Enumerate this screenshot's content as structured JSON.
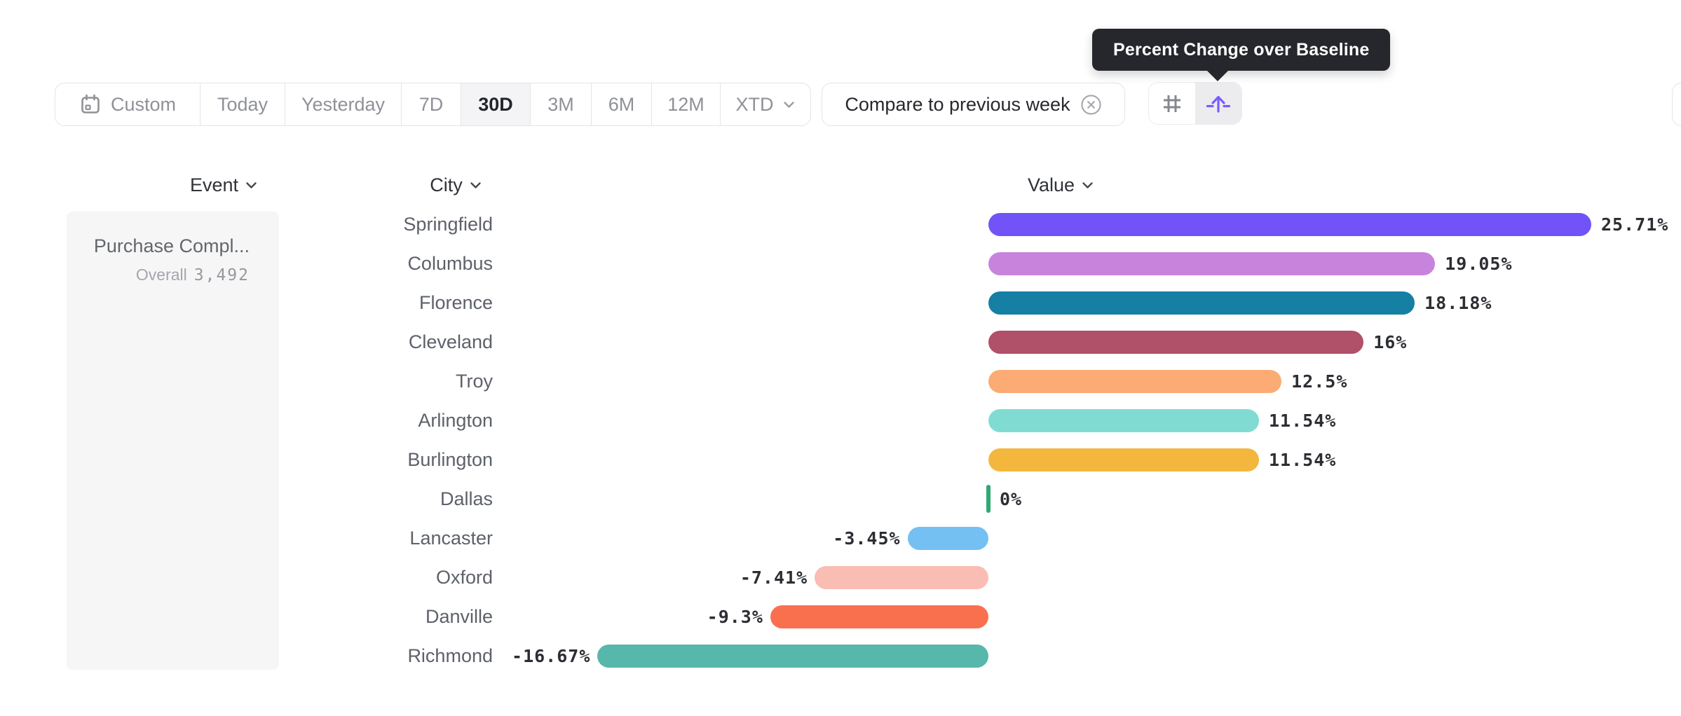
{
  "tooltip": {
    "text": "Percent Change over Baseline"
  },
  "toolbar": {
    "date_ranges": [
      {
        "label": "Custom",
        "icon": "calendar-icon",
        "selected": false
      },
      {
        "label": "Today",
        "selected": false
      },
      {
        "label": "Yesterday",
        "selected": false
      },
      {
        "label": "7D",
        "selected": false
      },
      {
        "label": "30D",
        "selected": true
      },
      {
        "label": "3M",
        "selected": false
      },
      {
        "label": "6M",
        "selected": false
      },
      {
        "label": "12M",
        "selected": false
      },
      {
        "label": "XTD",
        "chevron": true,
        "selected": false
      }
    ],
    "compare": {
      "label": "Compare to previous week",
      "icon": "circle-x-icon"
    },
    "view_toggle": [
      {
        "name": "grid-view",
        "icon": "hash-grid-icon",
        "active": false
      },
      {
        "name": "baseline-view",
        "icon": "arrow-up-baseline-icon",
        "active": true
      }
    ]
  },
  "columns": [
    {
      "label": "Event",
      "chevron": true
    },
    {
      "label": "City",
      "chevron": true
    },
    {
      "label": "Value",
      "chevron": true
    }
  ],
  "event_cell": {
    "name": "Purchase Compl...",
    "overall_label": "Overall",
    "overall_value": "3,492"
  },
  "chart_data": {
    "type": "bar",
    "orientation": "horizontal",
    "title": "Percent Change over Baseline",
    "categories": [
      "Springfield",
      "Columbus",
      "Florence",
      "Cleveland",
      "Troy",
      "Arlington",
      "Burlington",
      "Dallas",
      "Lancaster",
      "Oxford",
      "Danville",
      "Richmond"
    ],
    "values": [
      25.71,
      19.05,
      18.18,
      16,
      12.5,
      11.54,
      11.54,
      0,
      -3.45,
      -7.41,
      -9.3,
      -16.67
    ],
    "value_labels": [
      "25.71%",
      "19.05%",
      "18.18%",
      "16%",
      "12.5%",
      "11.54%",
      "11.54%",
      "0%",
      "-3.45%",
      "-7.41%",
      "-9.3%",
      "-16.67%"
    ],
    "colors": [
      "#7253f7",
      "#c884dc",
      "#157fa4",
      "#b15069",
      "#fbab73",
      "#80dcd3",
      "#f3b73e",
      "#2fa874",
      "#74c0f3",
      "#fabdb3",
      "#f9704f",
      "#57b7ab"
    ],
    "baseline_value": 0,
    "baseline_marker_color": "#2fa874",
    "xlim": [
      -20,
      29
    ],
    "grid": false,
    "legend": false
  },
  "accent_color": "#7b5cfc"
}
